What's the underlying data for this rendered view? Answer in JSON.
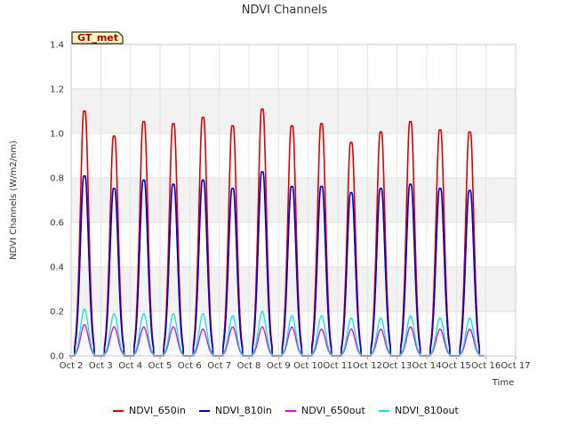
{
  "chart_data": {
    "type": "line",
    "title": "NDVI Channels",
    "xlabel": "Time",
    "ylabel": "NDVI Channels (W/m2/nm)",
    "badge": "GT_met",
    "xlim": [
      0,
      15
    ],
    "ylim": [
      0,
      1.4
    ],
    "x_ticks": [
      "Oct 2",
      "Oct 3",
      "Oct 4",
      "Oct 5",
      "Oct 6",
      "Oct 7",
      "Oct 8",
      "Oct 9",
      "Oct 10",
      "Oct 11",
      "Oct 12",
      "Oct 13",
      "Oct 14",
      "Oct 15",
      "Oct 16",
      "Oct 17"
    ],
    "y_ticks": [
      "0.0",
      "0.2",
      "0.4",
      "0.6",
      "0.8",
      "1.0",
      "1.2",
      "1.4"
    ],
    "day_offsets": [
      0.45,
      1.45,
      2.45,
      3.45,
      4.45,
      5.45,
      6.45,
      7.45,
      8.45,
      9.45,
      10.45,
      11.45,
      12.45,
      13.45
    ],
    "series": [
      {
        "name": "NDVI_650in",
        "color": "#dd0000",
        "peaks": [
          1.17,
          1.05,
          1.12,
          1.11,
          1.14,
          1.1,
          1.18,
          1.1,
          1.11,
          1.02,
          1.07,
          1.12,
          1.08,
          1.07
        ]
      },
      {
        "name": "NDVI_810in",
        "color": "#0000cc",
        "peaks": [
          0.86,
          0.8,
          0.84,
          0.82,
          0.84,
          0.8,
          0.88,
          0.81,
          0.81,
          0.78,
          0.8,
          0.82,
          0.8,
          0.79
        ]
      },
      {
        "name": "NDVI_650out",
        "color": "#dd00dd",
        "peaks": [
          0.14,
          0.13,
          0.13,
          0.13,
          0.12,
          0.13,
          0.13,
          0.13,
          0.12,
          0.12,
          0.12,
          0.13,
          0.12,
          0.12
        ]
      },
      {
        "name": "NDVI_810out",
        "color": "#00e5e5",
        "peaks": [
          0.21,
          0.19,
          0.19,
          0.19,
          0.19,
          0.18,
          0.2,
          0.18,
          0.18,
          0.17,
          0.17,
          0.18,
          0.17,
          0.17
        ]
      }
    ]
  }
}
